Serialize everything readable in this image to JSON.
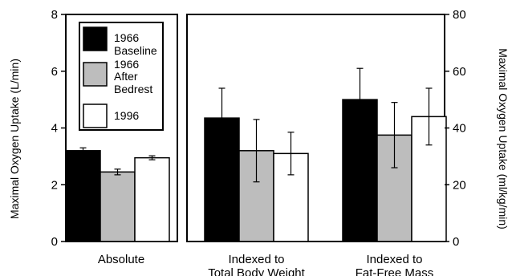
{
  "chart_data": [
    {
      "type": "bar",
      "panel": "absolute",
      "categories": [
        "Absolute"
      ],
      "ylabel": "Maximal Oxygen Uptake (L/min)",
      "ylim": [
        0,
        8
      ],
      "yticks": [
        "0",
        "2",
        "4",
        "6",
        "8"
      ],
      "series": [
        {
          "name": "1966 Baseline",
          "values": [
            3.2
          ],
          "error": [
            0.1
          ],
          "color": "#000000"
        },
        {
          "name": "1966 After Bedrest",
          "values": [
            2.45
          ],
          "error": [
            0.1
          ],
          "color": "#bdbdbd"
        },
        {
          "name": "1996",
          "values": [
            2.95
          ],
          "error": [
            0.07
          ],
          "color": "#ffffff"
        }
      ],
      "legend": {
        "placement": "top-right",
        "entries": [
          {
            "lines": [
              "1966",
              "Baseline"
            ]
          },
          {
            "lines": [
              "1966",
              "After",
              "Bedrest"
            ]
          },
          {
            "lines": [
              "1996"
            ]
          }
        ]
      }
    },
    {
      "type": "bar",
      "panel": "indexed",
      "categories": [
        "Indexed to Total Body Weight",
        "Indexed to Fat-Free Mass"
      ],
      "category_labels": [
        [
          "Indexed to",
          "Total Body Weight"
        ],
        [
          "Indexed to",
          "Fat-Free Mass"
        ]
      ],
      "ylabel": "Maximal Oxygen Uptake (ml/kg/min)",
      "ylim": [
        0,
        80
      ],
      "yticks": [
        "0",
        "20",
        "40",
        "60",
        "80"
      ],
      "series": [
        {
          "name": "1966 Baseline",
          "values": [
            43.5,
            50
          ],
          "error": [
            10.5,
            11
          ],
          "color": "#000000"
        },
        {
          "name": "1966 After Bedrest",
          "values": [
            32,
            37.5
          ],
          "error": [
            11,
            11.5
          ],
          "color": "#bdbdbd"
        },
        {
          "name": "1996",
          "values": [
            31,
            44
          ],
          "error": [
            7.5,
            10
          ],
          "color": "#ffffff"
        }
      ]
    }
  ]
}
